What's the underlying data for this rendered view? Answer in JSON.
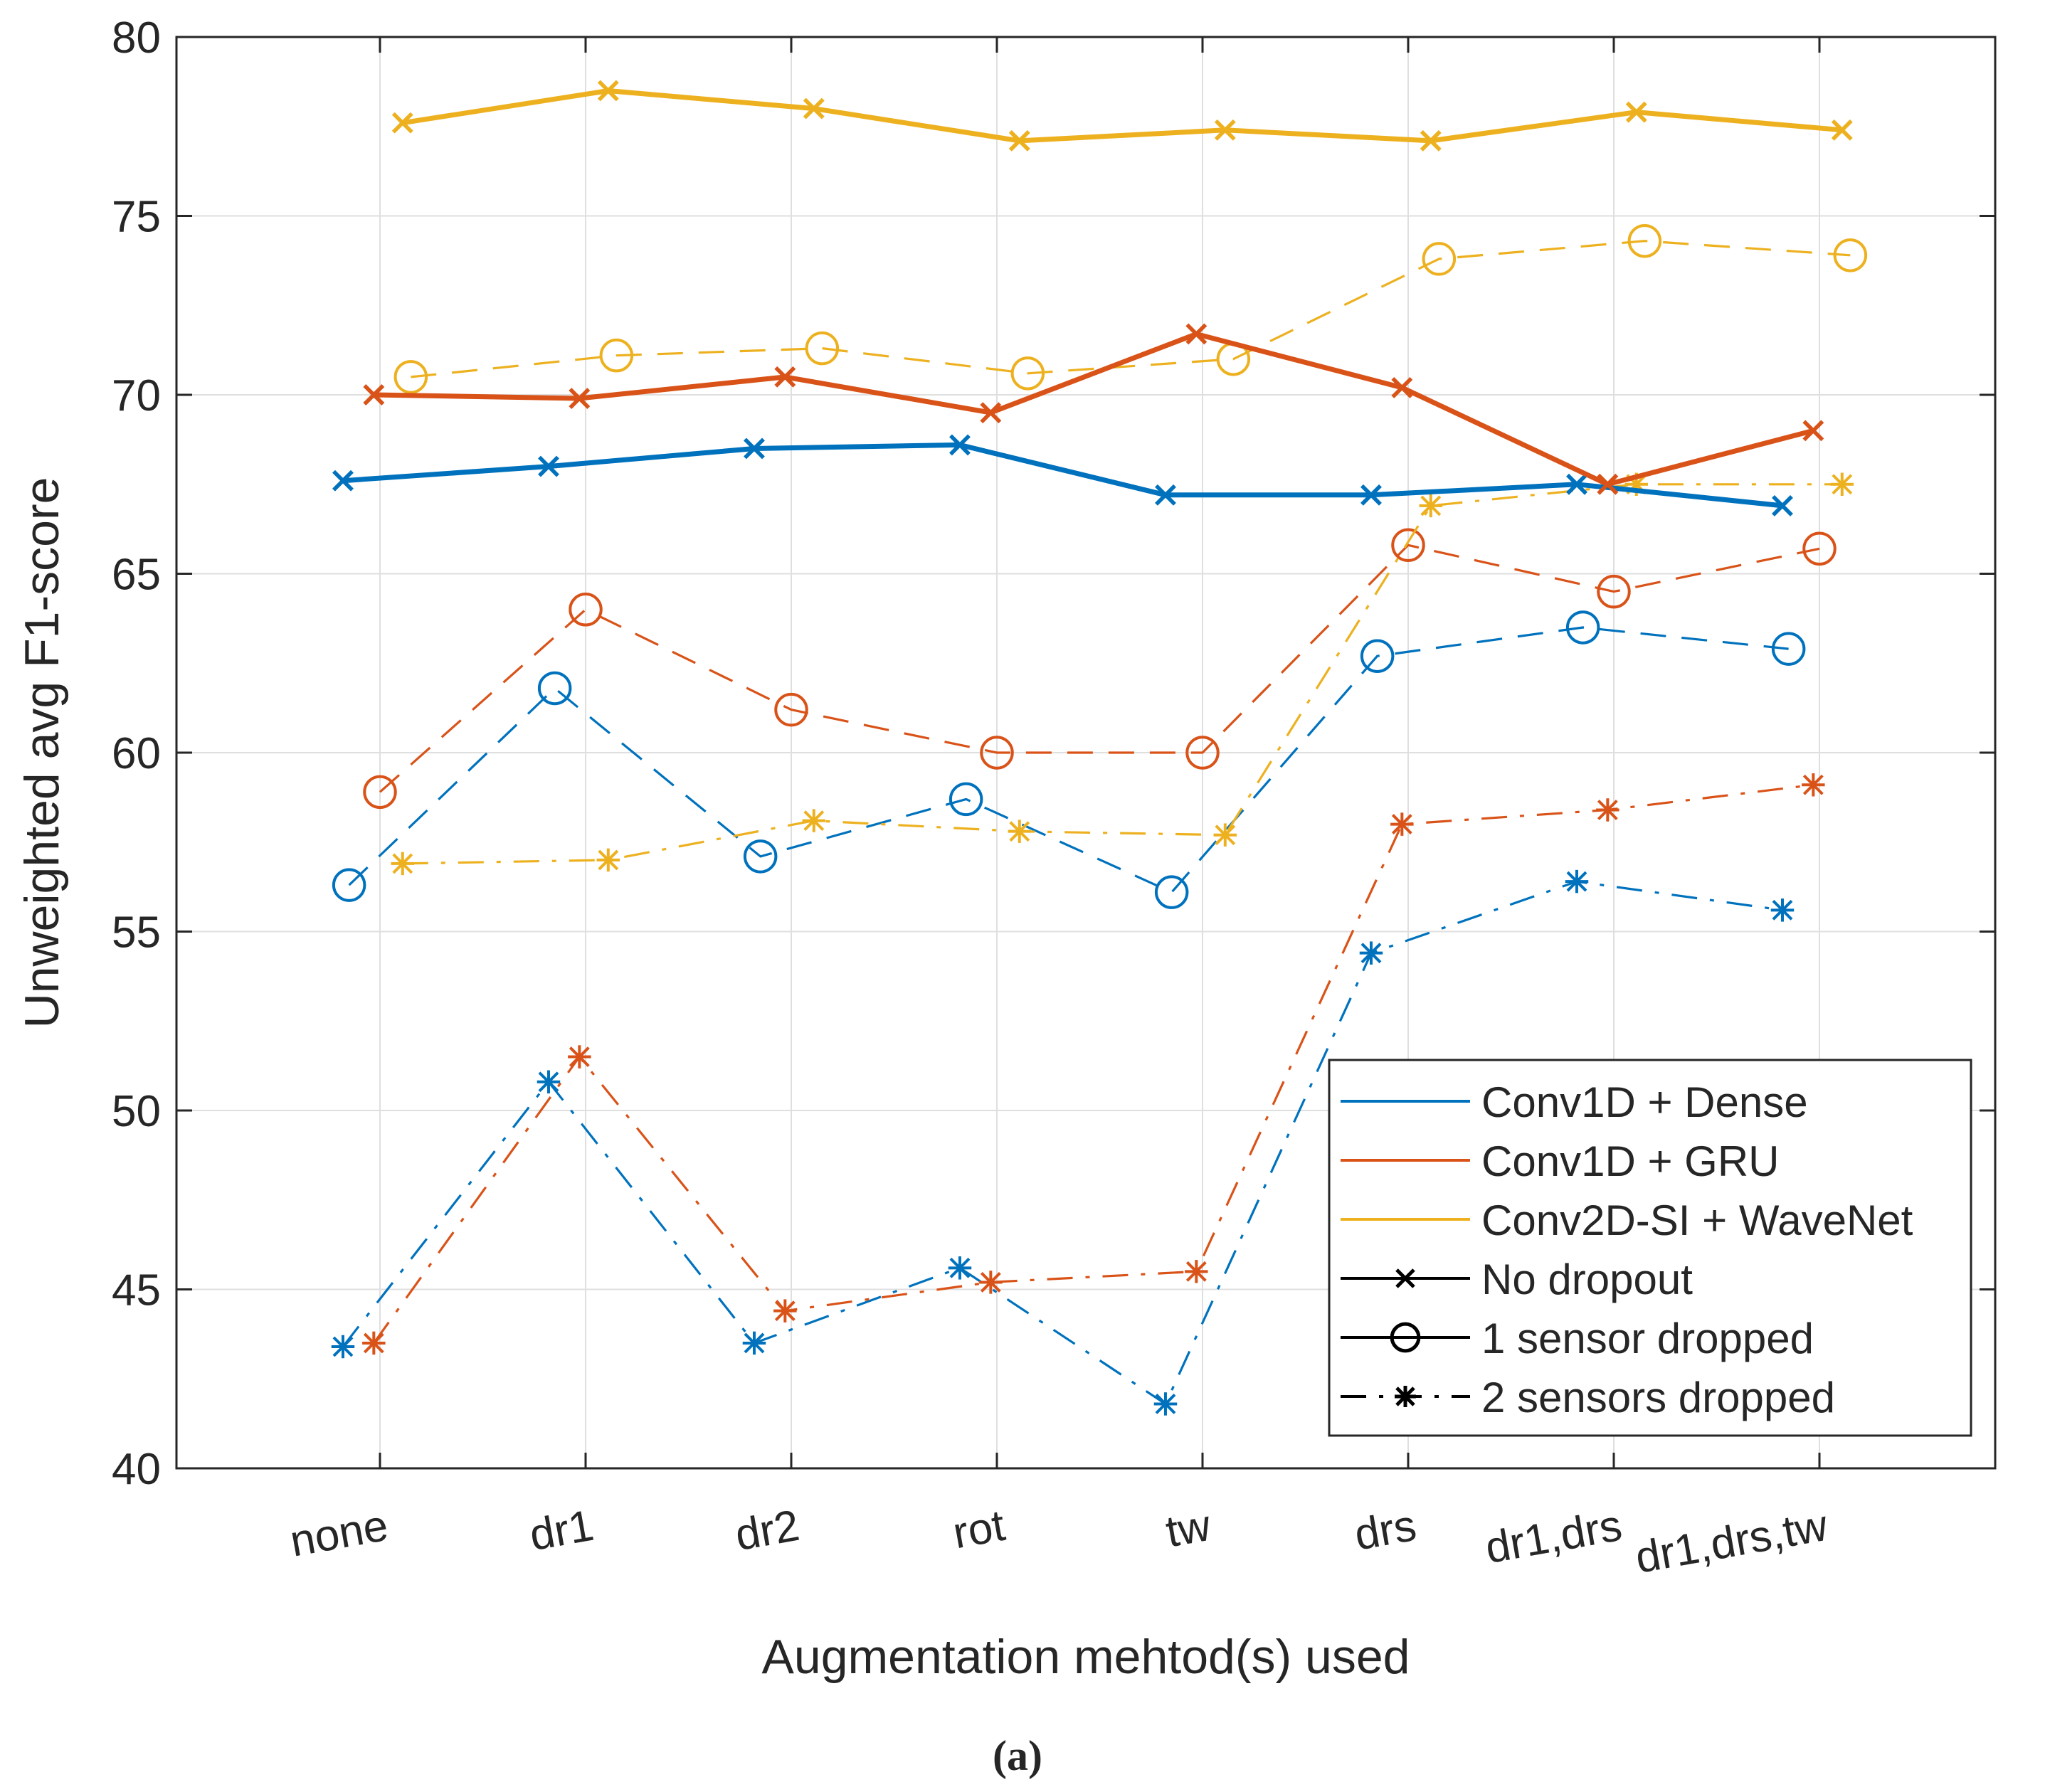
{
  "chart_data": {
    "type": "line",
    "title": "",
    "xlabel": "Augmentation mehtod(s) used",
    "ylabel": "Unweighted avg F1-score",
    "caption": "(a)",
    "categories": [
      "none",
      "dr1",
      "dr2",
      "rot",
      "tw",
      "drs",
      "dr1,drs",
      "dr1,drs,tw"
    ],
    "ylim": [
      40,
      80
    ],
    "yticks": [
      "40",
      "45",
      "50",
      "55",
      "60",
      "65",
      "70",
      "75",
      "80"
    ],
    "grid": true,
    "legend_position": "bottom-right",
    "legend": [
      {
        "label": "Conv1D + Dense",
        "kind": "color",
        "color": "#0072BD"
      },
      {
        "label": "Conv1D + GRU",
        "kind": "color",
        "color": "#D95319"
      },
      {
        "label": "Conv2D-SI + WaveNet",
        "kind": "color",
        "color": "#EDB120"
      },
      {
        "label": "No dropout",
        "kind": "style",
        "marker": "x",
        "dash": "solid"
      },
      {
        "label": "1 sensor dropped",
        "kind": "style",
        "marker": "o",
        "dash": "solid"
      },
      {
        "label": "2 sensors dropped",
        "kind": "style",
        "marker": "*",
        "dash": "dashdot"
      }
    ],
    "series": [
      {
        "name": "Conv1D + Dense, No dropout",
        "model": "Conv1D + Dense",
        "dropout": "No dropout",
        "color": "#0072BD",
        "marker": "x",
        "dash": "solid",
        "offset": -0.18,
        "values": [
          67.6,
          68.0,
          68.5,
          68.6,
          67.2,
          67.2,
          67.5,
          66.9
        ]
      },
      {
        "name": "Conv1D + GRU, No dropout",
        "model": "Conv1D + GRU",
        "dropout": "No dropout",
        "color": "#D95319",
        "marker": "x",
        "dash": "solid",
        "offset": -0.03,
        "values": [
          70.0,
          69.9,
          70.5,
          69.5,
          71.7,
          70.2,
          67.5,
          69.0
        ]
      },
      {
        "name": "Conv2D-SI + WaveNet, No dropout",
        "model": "Conv2D-SI + WaveNet",
        "dropout": "No dropout",
        "color": "#EDB120",
        "marker": "x",
        "dash": "solid",
        "offset": 0.11,
        "values": [
          77.6,
          78.5,
          78.0,
          77.1,
          77.4,
          77.1,
          77.9,
          77.4
        ]
      },
      {
        "name": "Conv1D + Dense, 1 sensor dropped",
        "model": "Conv1D + Dense",
        "dropout": "1 sensor dropped",
        "color": "#0072BD",
        "marker": "o",
        "dash": "dashed",
        "offset": -0.15,
        "values": [
          56.3,
          61.8,
          57.1,
          58.7,
          56.1,
          62.7,
          63.5,
          62.9
        ]
      },
      {
        "name": "Conv1D + GRU, 1 sensor dropped",
        "model": "Conv1D + GRU",
        "dropout": "1 sensor dropped",
        "color": "#D95319",
        "marker": "o",
        "dash": "dashed",
        "offset": 0.0,
        "values": [
          58.9,
          64.0,
          61.2,
          60.0,
          60.0,
          65.8,
          64.5,
          65.7
        ]
      },
      {
        "name": "Conv2D-SI + WaveNet, 1 sensor dropped",
        "model": "Conv2D-SI + WaveNet",
        "dropout": "1 sensor dropped",
        "color": "#EDB120",
        "marker": "o",
        "dash": "dashed",
        "offset": 0.15,
        "values": [
          70.5,
          71.1,
          71.3,
          70.6,
          71.0,
          73.8,
          74.3,
          73.9
        ]
      },
      {
        "name": "Conv1D + Dense, 2 sensors dropped",
        "model": "Conv1D + Dense",
        "dropout": "2 sensors dropped",
        "color": "#0072BD",
        "marker": "*",
        "dash": "dashdot",
        "offset": -0.18,
        "values": [
          43.4,
          50.8,
          43.5,
          45.6,
          41.8,
          54.4,
          56.4,
          55.6
        ]
      },
      {
        "name": "Conv1D + GRU, 2 sensors dropped",
        "model": "Conv1D + GRU",
        "dropout": "2 sensors dropped",
        "color": "#D95319",
        "marker": "*",
        "dash": "dashdot",
        "offset": -0.03,
        "values": [
          43.5,
          51.5,
          44.4,
          45.2,
          45.5,
          58.0,
          58.4,
          59.1
        ]
      },
      {
        "name": "Conv2D-SI + WaveNet, 2 sensors dropped",
        "model": "Conv2D-SI + WaveNet",
        "dropout": "2 sensors dropped",
        "color": "#EDB120",
        "marker": "*",
        "dash": "dashdot",
        "offset": 0.11,
        "values": [
          56.9,
          57.0,
          58.1,
          57.8,
          57.7,
          66.9,
          67.5,
          67.5
        ]
      }
    ]
  }
}
